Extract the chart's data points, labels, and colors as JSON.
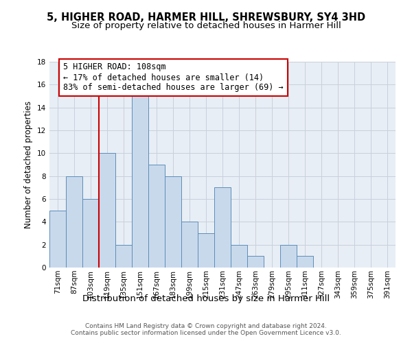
{
  "title": "5, HIGHER ROAD, HARMER HILL, SHREWSBURY, SY4 3HD",
  "subtitle": "Size of property relative to detached houses in Harmer Hill",
  "xlabel": "Distribution of detached houses by size in Harmer Hill",
  "ylabel": "Number of detached properties",
  "bar_labels": [
    "71sqm",
    "87sqm",
    "103sqm",
    "119sqm",
    "135sqm",
    "151sqm",
    "167sqm",
    "183sqm",
    "199sqm",
    "215sqm",
    "231sqm",
    "247sqm",
    "263sqm",
    "279sqm",
    "295sqm",
    "311sqm",
    "327sqm",
    "343sqm",
    "359sqm",
    "375sqm",
    "391sqm"
  ],
  "bar_values": [
    5,
    8,
    6,
    10,
    2,
    15,
    9,
    8,
    4,
    3,
    7,
    2,
    1,
    0,
    2,
    1,
    0,
    0,
    0,
    0,
    0
  ],
  "bar_color": "#c9d9ec",
  "bar_edge_color": "#5b8db8",
  "grid_color": "#c8d0dc",
  "bg_color": "#e8eef5",
  "vline_x": 3.0,
  "vline_color": "#cc0000",
  "annotation_text": "5 HIGHER ROAD: 108sqm\n← 17% of detached houses are smaller (14)\n83% of semi-detached houses are larger (69) →",
  "annotation_box_color": "#cc0000",
  "ylim": [
    0,
    18
  ],
  "yticks": [
    0,
    2,
    4,
    6,
    8,
    10,
    12,
    14,
    16,
    18
  ],
  "footer": "Contains HM Land Registry data © Crown copyright and database right 2024.\nContains public sector information licensed under the Open Government Licence v3.0.",
  "title_fontsize": 10.5,
  "subtitle_fontsize": 9.5,
  "xlabel_fontsize": 9.5,
  "ylabel_fontsize": 8.5,
  "tick_fontsize": 7.5,
  "footer_fontsize": 6.5,
  "ann_fontsize": 8.5
}
